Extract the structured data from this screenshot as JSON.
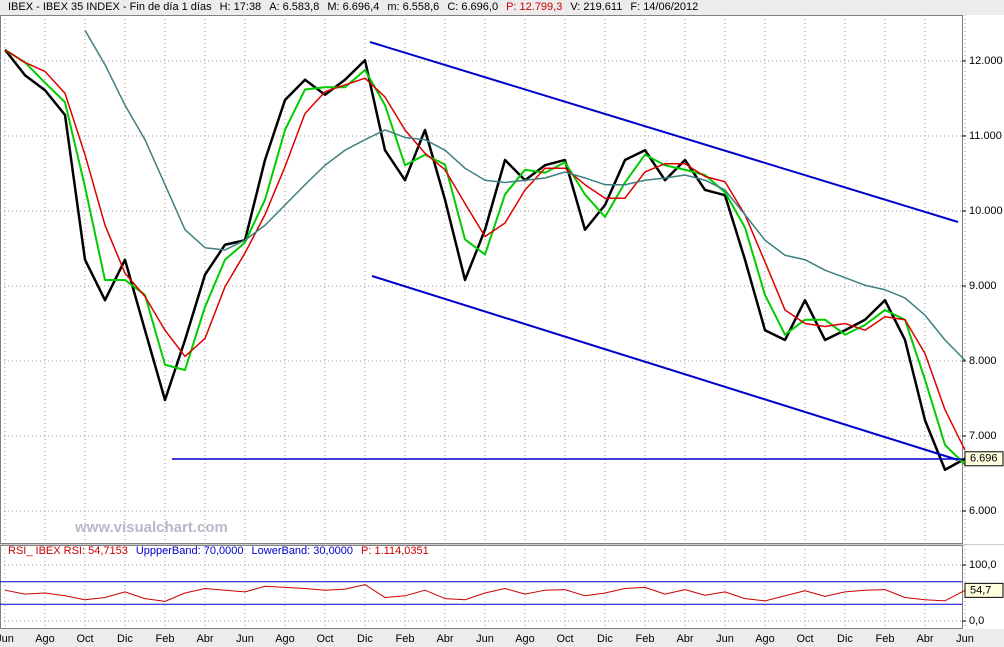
{
  "chart_data": [
    {
      "type": "line",
      "info": [
        {
          "text": "IBEX - IBEX 35 INDEX - Fin de día 1 días",
          "color": "#000000"
        },
        {
          "text": "H: 17:38",
          "color": "#000000"
        },
        {
          "text": "A: 6.583,8",
          "color": "#000000"
        },
        {
          "text": "M: 6.696,4",
          "color": "#000000"
        },
        {
          "text": "m: 6.558,6",
          "color": "#000000"
        },
        {
          "text": "C: 6.696,0",
          "color": "#000000"
        },
        {
          "text": "P: 12.799,3",
          "color": "#cc0000"
        },
        {
          "text": "V: 219.611",
          "color": "#000000"
        },
        {
          "text": "F: 14/06/2012",
          "color": "#000000"
        }
      ],
      "watermark": "www.visualchart.com",
      "categories": [
        "Jun",
        null,
        "Ago",
        null,
        "Oct",
        null,
        "Dic",
        null,
        "Feb",
        null,
        "Abr",
        null,
        "Jun",
        null,
        "Ago",
        null,
        "Oct",
        null,
        "Dic",
        null,
        "Feb",
        null,
        "Abr",
        null,
        "Jun",
        null,
        "Ago",
        null,
        "Oct",
        null,
        "Dic",
        null,
        "Feb",
        null,
        "Abr",
        null,
        "Jun",
        null,
        "Ago",
        null,
        "Oct",
        null,
        "Dic",
        null,
        "Feb",
        null,
        "Abr",
        null,
        "Jun"
      ],
      "series": [
        {
          "name": "IBEX",
          "color": "#000000",
          "width": 2.5,
          "last_label": "6.696",
          "values": [
            12150,
            11810,
            11610,
            11280,
            9350,
            8810,
            9350,
            8410,
            7480,
            8280,
            9150,
            9550,
            9610,
            10680,
            11480,
            11750,
            11550,
            11750,
            12010,
            10810,
            10410,
            11080,
            10150,
            9080,
            9750,
            10680,
            10410,
            10610,
            10680,
            9750,
            10080,
            10680,
            10810,
            10410,
            10680,
            10280,
            10210,
            9350,
            8410,
            8280,
            8810,
            8280,
            8410,
            8550,
            8810,
            8280,
            7210,
            6550,
            6696
          ]
        },
        {
          "name": "fast",
          "color": "#00cc00",
          "width": 2,
          "values": [
            12150,
            11980,
            11710,
            11450,
            10320,
            9080,
            9080,
            8880,
            7950,
            7880,
            8720,
            9350,
            9580,
            10150,
            11080,
            11620,
            11650,
            11650,
            11880,
            11410,
            10610,
            10750,
            10620,
            9620,
            9420,
            10220,
            10550,
            10510,
            10650,
            10220,
            9920,
            10380,
            10750,
            10610,
            10550,
            10480,
            10250,
            9780,
            8880,
            8350,
            8550,
            8550,
            8350,
            8480,
            8680,
            8550,
            7750,
            6880,
            6620
          ]
        },
        {
          "name": "medium",
          "color": "#dd0000",
          "width": 1.5,
          "values": [
            12150,
            11980,
            11860,
            11570,
            10750,
            9810,
            9170,
            8860,
            8410,
            8060,
            8300,
            8990,
            9440,
            9950,
            10590,
            11300,
            11590,
            11680,
            11770,
            11520,
            11080,
            10770,
            10550,
            10100,
            9660,
            9840,
            10280,
            10570,
            10570,
            10350,
            10170,
            10170,
            10520,
            10630,
            10630,
            10460,
            10390,
            9950,
            9320,
            8680,
            8500,
            8460,
            8500,
            8410,
            8590,
            8550,
            8100,
            7350,
            6810
          ]
        },
        {
          "name": "slow",
          "color": "#3d8080",
          "width": 1.5,
          "values": [
            null,
            null,
            null,
            null,
            12410,
            11950,
            11410,
            10950,
            10350,
            9750,
            9510,
            9480,
            9610,
            9810,
            10080,
            10350,
            10610,
            10810,
            10950,
            11080,
            10980,
            10950,
            10810,
            10570,
            10410,
            10380,
            10410,
            10440,
            10520,
            10440,
            10350,
            10350,
            10410,
            10440,
            10480,
            10410,
            10280,
            9950,
            9610,
            9410,
            9350,
            9210,
            9110,
            9010,
            8950,
            8840,
            8610,
            8280,
            8010
          ]
        }
      ],
      "ylim": [
        5573,
        12613
      ],
      "yticks": [
        {
          "value": 6000,
          "label": "6.000"
        },
        {
          "value": 7000,
          "label": "7.000"
        },
        {
          "value": 8000,
          "label": "8.000"
        },
        {
          "value": 9000,
          "label": "9.000"
        },
        {
          "value": 10000,
          "label": "10.000"
        },
        {
          "value": 11000,
          "label": "11.000"
        },
        {
          "value": 12000,
          "label": "12.000"
        }
      ],
      "grid": true
    },
    {
      "type": "line",
      "info": [
        {
          "text": "RSI_ IBEX RSI: 54,7153",
          "color": "#cc0000"
        },
        {
          "text": "UppperBand: 70,0000",
          "color": "#0000cc"
        },
        {
          "text": "LowerBand: 30,0000",
          "color": "#0000cc"
        },
        {
          "text": "P: 1.114,0351",
          "color": "#cc0000"
        }
      ],
      "series": [
        {
          "name": "RSI",
          "color": "#cc0000",
          "width": 1,
          "last_label": "54,7",
          "values": [
            55,
            48,
            50,
            45,
            38,
            42,
            52,
            40,
            35,
            50,
            58,
            55,
            52,
            62,
            60,
            58,
            55,
            57,
            65,
            42,
            45,
            55,
            40,
            38,
            50,
            58,
            48,
            55,
            56,
            45,
            50,
            58,
            60,
            48,
            56,
            46,
            52,
            40,
            36,
            45,
            54,
            44,
            52,
            55,
            56,
            42,
            38,
            36,
            54.7153
          ]
        }
      ],
      "bands": [
        70,
        30
      ],
      "band_color": "#0000cc",
      "ylim": [
        -12.5,
        135.7
      ],
      "yticks": [
        {
          "value": 0,
          "label": "0,0"
        },
        {
          "value": 100,
          "label": "100,0"
        }
      ],
      "grid": true
    }
  ]
}
